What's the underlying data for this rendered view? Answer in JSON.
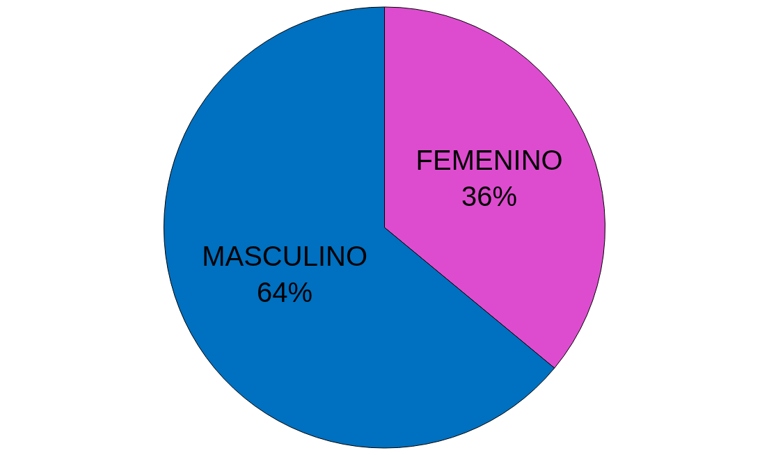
{
  "chart_data": {
    "type": "pie",
    "categories": [
      "FEMENINO",
      "MASCULINO"
    ],
    "values": [
      36,
      64
    ],
    "colors": [
      "#dd4ccf",
      "#0070c0"
    ],
    "value_labels": [
      "36%",
      "64%"
    ],
    "legend": false
  }
}
